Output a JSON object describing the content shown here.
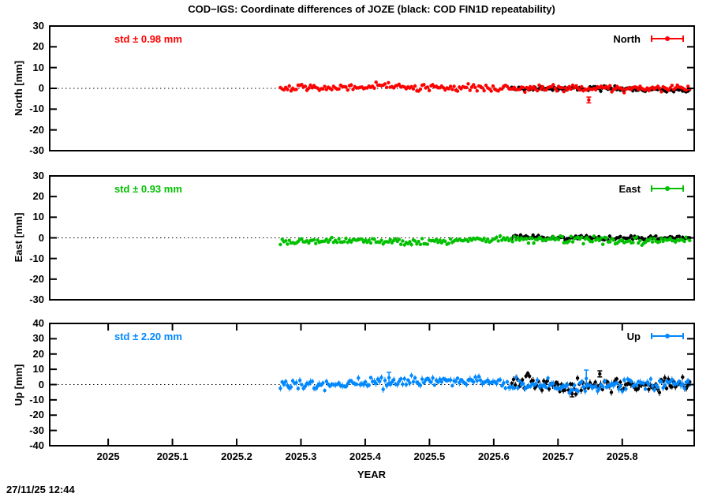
{
  "title": "COD−IGS: Coordinate differences of JOZE (black: COD FIN1D repeatability)",
  "timestamp": "27/11/25 12:44",
  "x_axis": {
    "label": "YEAR",
    "min": 2024.909,
    "max": 2025.912,
    "ticks": [
      {
        "v": 2025.0,
        "label": "2025"
      },
      {
        "v": 2025.1,
        "label": "2025.1"
      },
      {
        "v": 2025.2,
        "label": "2025.2"
      },
      {
        "v": 2025.3,
        "label": "2025.3"
      },
      {
        "v": 2025.4,
        "label": "2025.4"
      },
      {
        "v": 2025.5,
        "label": "2025.5"
      },
      {
        "v": 2025.6,
        "label": "2025.6"
      },
      {
        "v": 2025.7,
        "label": "2025.7"
      },
      {
        "v": 2025.8,
        "label": "2025.8"
      }
    ]
  },
  "chart_data": [
    {
      "type": "scatter",
      "panel": "North",
      "ylabel": "North [mm]",
      "ylim": [
        -30,
        30
      ],
      "y_tick_step": 10,
      "grid": "zero-line-dotted",
      "annotation": "std ± 0.98 mm",
      "annotation_color": "#ff0000",
      "legend_position": "top-right-inside",
      "series": [
        {
          "name": "COD FIN1D repeatability",
          "legend": null,
          "color": "#000000",
          "x_start": 2025.628,
          "x_end": 2025.905,
          "n": 101,
          "mean": -0.1,
          "sigma": 0.6,
          "wander": 0.3,
          "err": [
            0.5,
            1.0
          ],
          "seed": 11,
          "outliers": []
        },
        {
          "name": "North",
          "legend": "North",
          "color": "#ff0000",
          "x_start": 2025.268,
          "x_end": 2025.905,
          "n": 232,
          "mean": 0.2,
          "sigma": 0.75,
          "wander": 0.35,
          "err": [
            0.5,
            1.0
          ],
          "seed": 7,
          "outliers": [
            {
              "x": 2025.748,
              "y": -5.6,
              "e": 1.4
            }
          ]
        }
      ]
    },
    {
      "type": "scatter",
      "panel": "East",
      "ylabel": "East [mm]",
      "ylim": [
        -30,
        30
      ],
      "y_tick_step": 10,
      "grid": "zero-line-dotted",
      "annotation": "std ± 0.93 mm",
      "annotation_color": "#00c000",
      "legend_position": "top-right-inside",
      "series": [
        {
          "name": "COD FIN1D repeatability",
          "legend": null,
          "color": "#000000",
          "x_start": 2025.628,
          "x_end": 2025.905,
          "n": 101,
          "mean": 0.4,
          "sigma": 0.55,
          "wander": 0.3,
          "err": [
            0.5,
            1.0
          ],
          "seed": 23,
          "outliers": []
        },
        {
          "name": "East",
          "legend": "East",
          "color": "#00c000",
          "x_start": 2025.268,
          "x_end": 2025.905,
          "n": 232,
          "mean": -1.2,
          "sigma": 0.8,
          "wander": 0.4,
          "err": [
            0.5,
            1.0
          ],
          "seed": 13,
          "outliers": []
        }
      ]
    },
    {
      "type": "scatter",
      "panel": "Up",
      "ylabel": "Up [mm]",
      "ylim": [
        -40,
        40
      ],
      "y_tick_step": 10,
      "grid": "zero-line-dotted",
      "annotation": "std ± 2.20 mm",
      "annotation_color": "#0088ff",
      "legend_position": "top-right-inside",
      "series": [
        {
          "name": "COD FIN1D repeatability",
          "legend": null,
          "color": "#000000",
          "x_start": 2025.628,
          "x_end": 2025.905,
          "n": 101,
          "mean": 0.3,
          "sigma": 2.6,
          "wander": 0.8,
          "err": [
            1.2,
            2.4
          ],
          "seed": 31,
          "outliers": [
            {
              "x": 2025.765,
              "y": 7.0,
              "e": 2.0
            },
            {
              "x": 2025.722,
              "y": -6.0,
              "e": 2.0
            }
          ]
        },
        {
          "name": "Up",
          "legend": "Up",
          "color": "#0088ff",
          "x_start": 2025.268,
          "x_end": 2025.905,
          "n": 232,
          "mean": 0.8,
          "sigma": 1.9,
          "wander": 0.8,
          "err": [
            1.2,
            2.4
          ],
          "seed": 17,
          "outliers": [
            {
              "x": 2025.437,
              "y": 4.5,
              "e": 3.5
            },
            {
              "x": 2025.744,
              "y": 4.0,
              "e": 5.5
            }
          ]
        }
      ]
    }
  ]
}
